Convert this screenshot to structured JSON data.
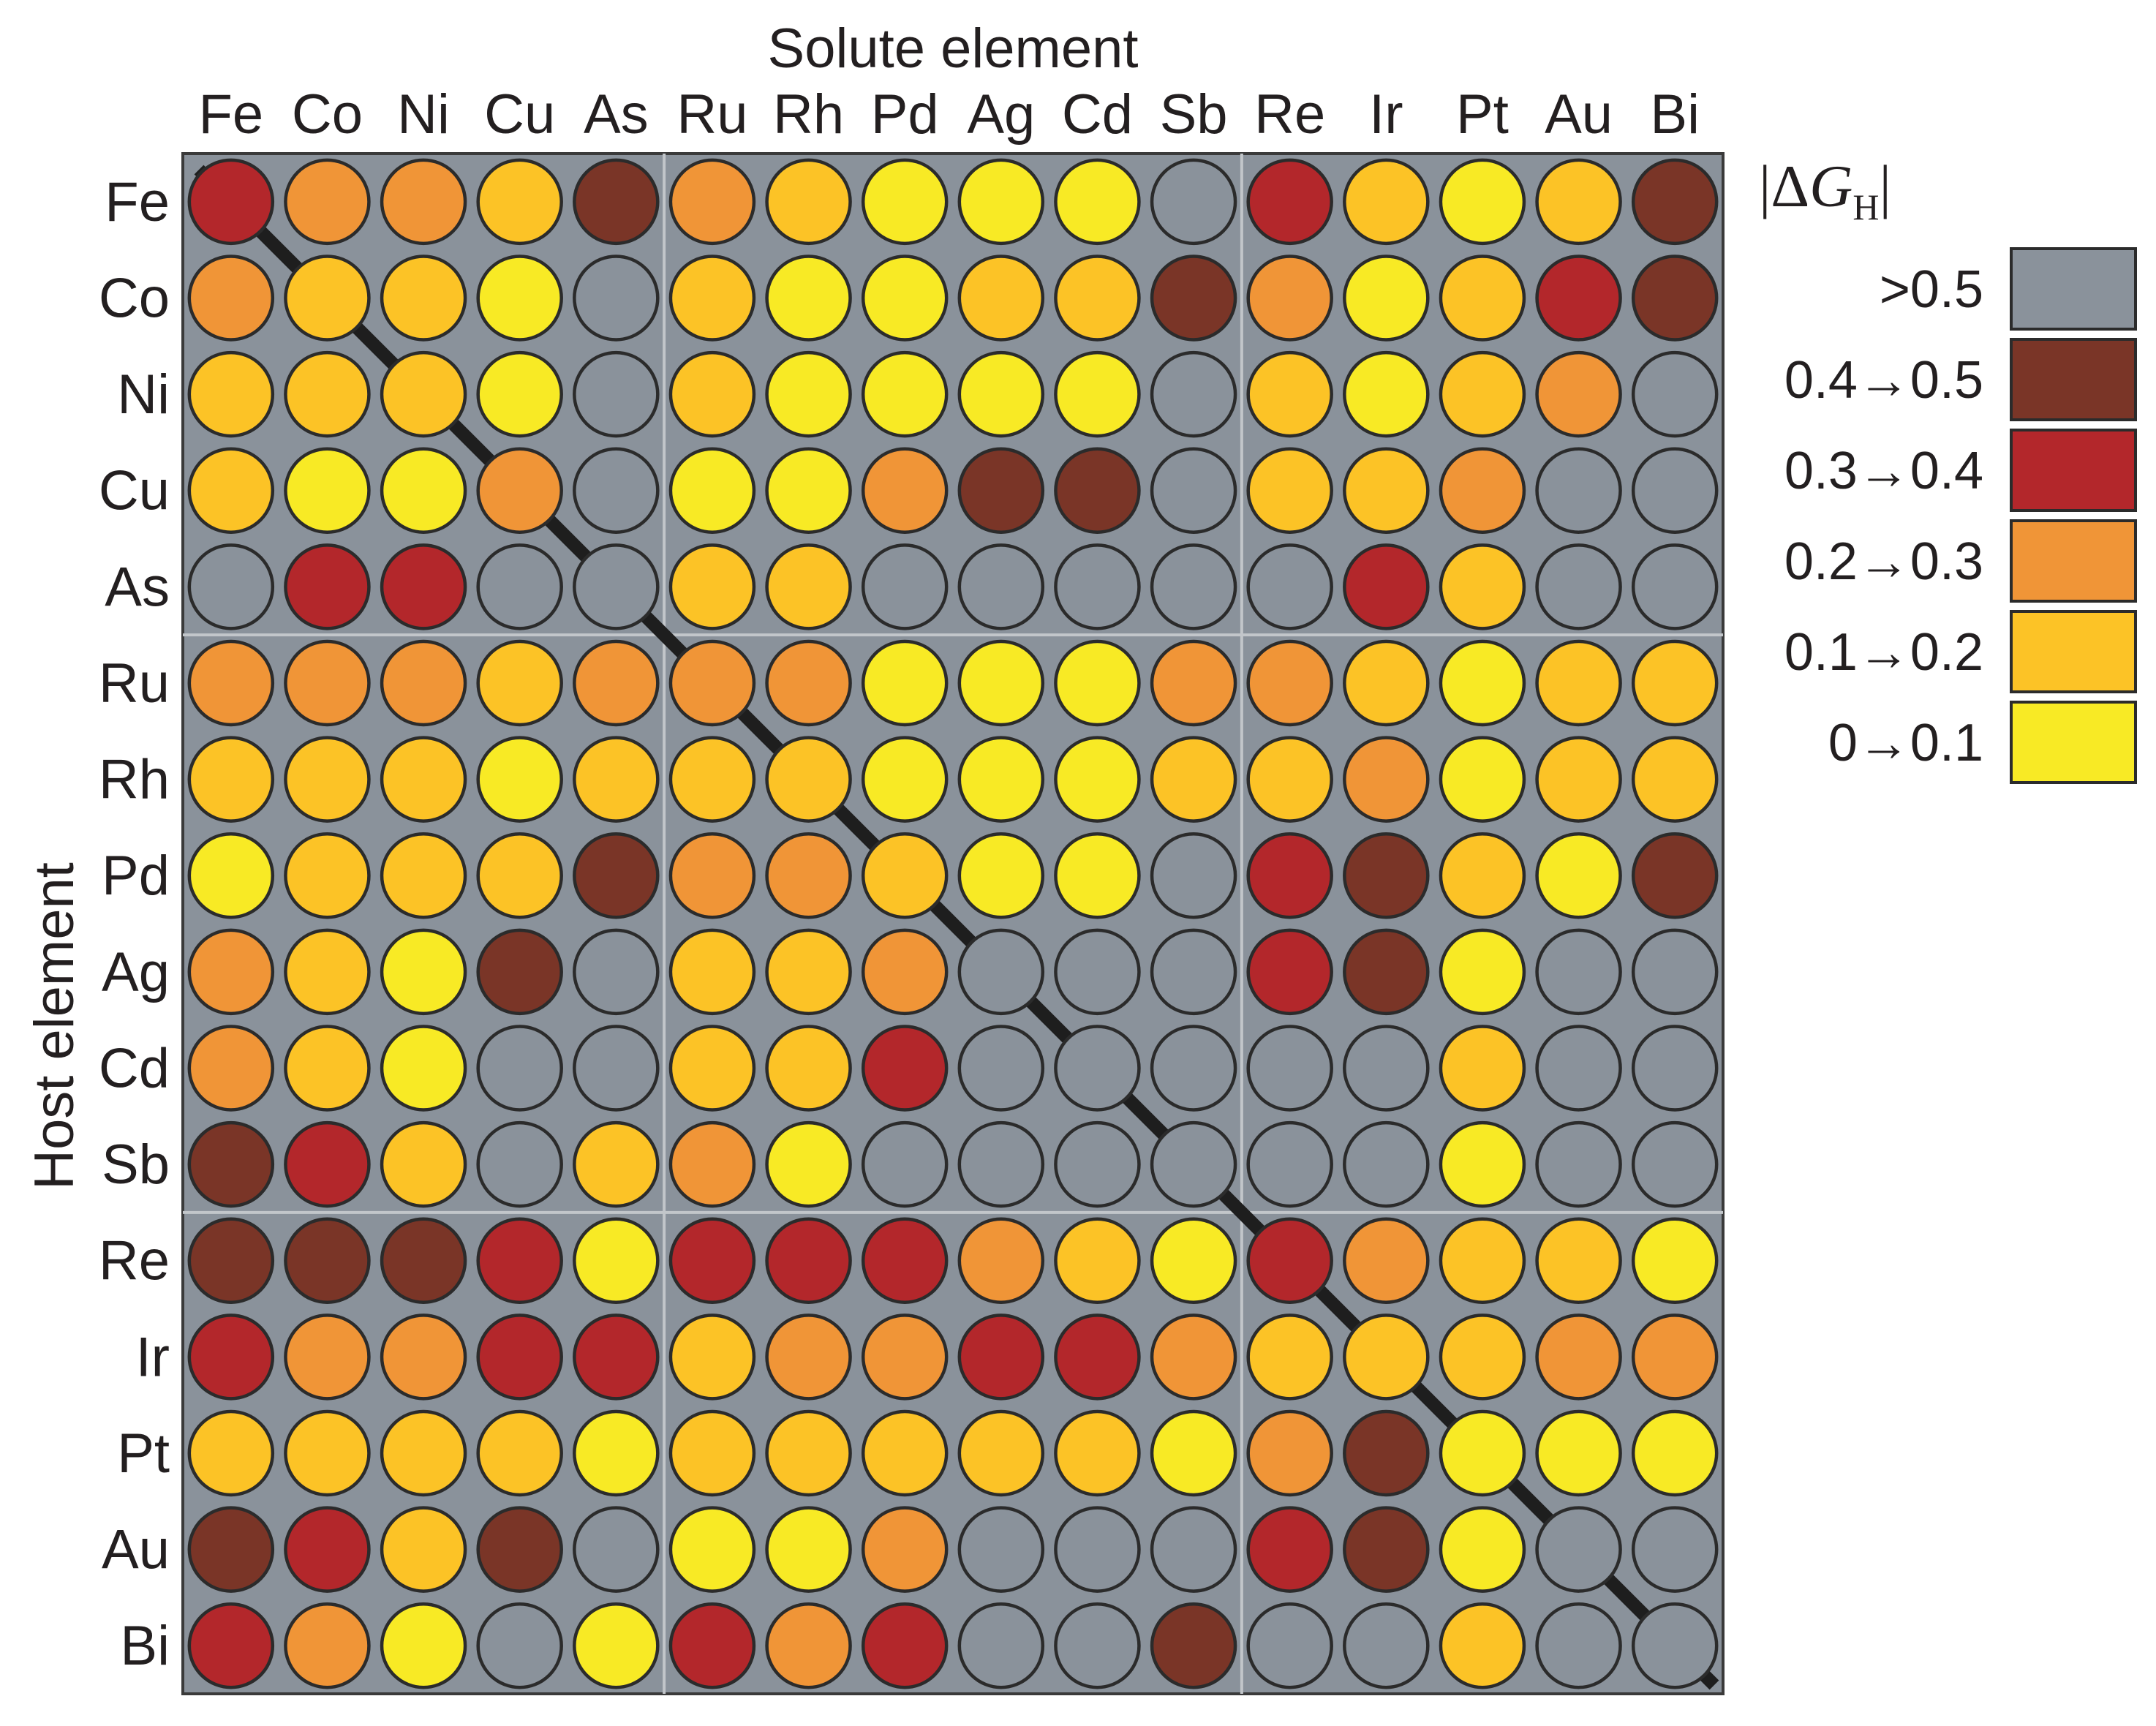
{
  "chart_data": {
    "type": "heatmap",
    "title": "",
    "xlabel": "Solute element",
    "ylabel": "Host element",
    "x_categories": [
      "Fe",
      "Co",
      "Ni",
      "Cu",
      "As",
      "Ru",
      "Rh",
      "Pd",
      "Ag",
      "Cd",
      "Sb",
      "Re",
      "Ir",
      "Pt",
      "Au",
      "Bi"
    ],
    "y_categories": [
      "Fe",
      "Co",
      "Ni",
      "Cu",
      "As",
      "Ru",
      "Rh",
      "Pd",
      "Ag",
      "Cd",
      "Sb",
      "Re",
      "Ir",
      "Pt",
      "Au",
      "Bi"
    ],
    "group_separators_after_index": [
      4,
      10
    ],
    "diagonal_line": true,
    "legend": {
      "title_prefix": "|",
      "title_delta": "Δ",
      "title_g": "G",
      "title_sub": "H",
      "title_suffix": "|",
      "bins": [
        {
          "key": 5,
          "label": ">0.5",
          "color": "#8a929b"
        },
        {
          "key": 4,
          "label": "0.4→0.5",
          "color": "#7a3527"
        },
        {
          "key": 3,
          "label": "0.3→0.4",
          "color": "#b3272b"
        },
        {
          "key": 2,
          "label": "0.2→0.3",
          "color": "#f09537"
        },
        {
          "key": 1,
          "label": "0.1→0.2",
          "color": "#fcc326"
        },
        {
          "key": 0,
          "label": "0→0.1",
          "color": "#f8ea25"
        }
      ]
    },
    "bin_matrix": [
      [
        3,
        2,
        2,
        1,
        4,
        2,
        1,
        0,
        0,
        0,
        5,
        3,
        1,
        0,
        1,
        4
      ],
      [
        2,
        1,
        1,
        0,
        5,
        1,
        0,
        0,
        1,
        1,
        4,
        2,
        0,
        1,
        3,
        4
      ],
      [
        1,
        1,
        1,
        0,
        5,
        1,
        0,
        0,
        0,
        0,
        5,
        1,
        0,
        1,
        2,
        5
      ],
      [
        1,
        0,
        0,
        2,
        5,
        0,
        0,
        2,
        4,
        4,
        5,
        1,
        1,
        2,
        5,
        5
      ],
      [
        5,
        3,
        3,
        5,
        5,
        1,
        1,
        5,
        5,
        5,
        5,
        5,
        3,
        1,
        5,
        5
      ],
      [
        2,
        2,
        2,
        1,
        2,
        2,
        2,
        0,
        0,
        0,
        2,
        2,
        1,
        0,
        1,
        1
      ],
      [
        1,
        1,
        1,
        0,
        1,
        1,
        1,
        0,
        0,
        0,
        1,
        1,
        2,
        0,
        1,
        1
      ],
      [
        0,
        1,
        1,
        1,
        4,
        2,
        2,
        1,
        0,
        0,
        5,
        3,
        4,
        1,
        0,
        4
      ],
      [
        2,
        1,
        0,
        4,
        5,
        1,
        1,
        2,
        5,
        5,
        5,
        3,
        4,
        0,
        5,
        5
      ],
      [
        2,
        1,
        0,
        5,
        5,
        1,
        1,
        3,
        5,
        5,
        5,
        5,
        5,
        1,
        5,
        5
      ],
      [
        4,
        3,
        1,
        5,
        1,
        2,
        0,
        5,
        5,
        5,
        5,
        5,
        5,
        0,
        5,
        5
      ],
      [
        4,
        4,
        4,
        3,
        0,
        3,
        3,
        3,
        2,
        1,
        0,
        3,
        2,
        1,
        1,
        0
      ],
      [
        3,
        2,
        2,
        3,
        3,
        1,
        2,
        2,
        3,
        3,
        2,
        1,
        1,
        1,
        2,
        2
      ],
      [
        1,
        1,
        1,
        1,
        0,
        1,
        1,
        1,
        1,
        1,
        0,
        2,
        4,
        0,
        0,
        0
      ],
      [
        4,
        3,
        1,
        4,
        5,
        0,
        0,
        2,
        5,
        5,
        5,
        3,
        4,
        0,
        5,
        5
      ],
      [
        3,
        2,
        0,
        5,
        0,
        3,
        2,
        3,
        5,
        5,
        4,
        5,
        5,
        1,
        5,
        5
      ]
    ]
  }
}
